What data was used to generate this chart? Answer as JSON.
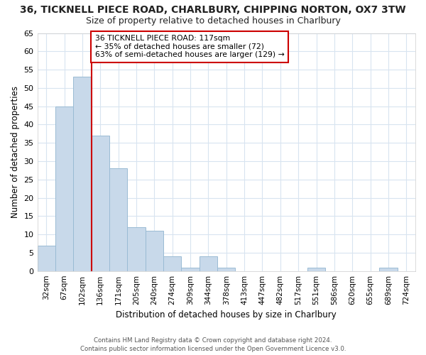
{
  "title1": "36, TICKNELL PIECE ROAD, CHARLBURY, CHIPPING NORTON, OX7 3TW",
  "title2": "Size of property relative to detached houses in Charlbury",
  "xlabel": "Distribution of detached houses by size in Charlbury",
  "ylabel": "Number of detached properties",
  "categories": [
    "32sqm",
    "67sqm",
    "102sqm",
    "136sqm",
    "171sqm",
    "205sqm",
    "240sqm",
    "274sqm",
    "309sqm",
    "344sqm",
    "378sqm",
    "413sqm",
    "447sqm",
    "482sqm",
    "517sqm",
    "551sqm",
    "586sqm",
    "620sqm",
    "655sqm",
    "689sqm",
    "724sqm"
  ],
  "values": [
    7,
    45,
    53,
    37,
    28,
    12,
    11,
    4,
    1,
    4,
    1,
    0,
    0,
    0,
    0,
    1,
    0,
    0,
    0,
    1,
    0
  ],
  "bar_color": "#c8d9ea",
  "bar_edge_color": "#9abbd4",
  "highlight_line_color": "#cc0000",
  "highlight_line_index": 2,
  "annotation_text": "36 TICKNELL PIECE ROAD: 117sqm\n← 35% of detached houses are smaller (72)\n63% of semi-detached houses are larger (129) →",
  "annotation_box_facecolor": "#ffffff",
  "annotation_box_edgecolor": "#cc0000",
  "ylim": [
    0,
    65
  ],
  "yticks": [
    0,
    5,
    10,
    15,
    20,
    25,
    30,
    35,
    40,
    45,
    50,
    55,
    60,
    65
  ],
  "bg_color": "#ffffff",
  "grid_color": "#d8e4f0",
  "title1_fontsize": 10,
  "title2_fontsize": 9,
  "footer": "Contains HM Land Registry data © Crown copyright and database right 2024.\nContains public sector information licensed under the Open Government Licence v3.0."
}
